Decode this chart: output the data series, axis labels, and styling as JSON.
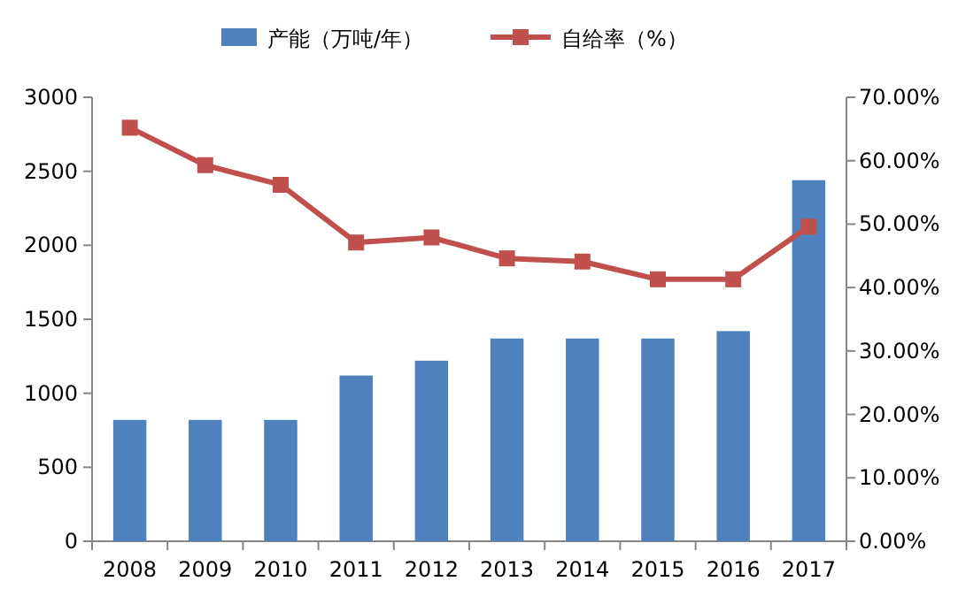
{
  "chart_data": {
    "type": "bar",
    "categories": [
      "2008",
      "2009",
      "2010",
      "2011",
      "2012",
      "2013",
      "2014",
      "2015",
      "2016",
      "2017"
    ],
    "series": [
      {
        "name": "产能（万吨/年）",
        "color": "#4f81bd",
        "values": [
          820,
          820,
          820,
          1120,
          1220,
          1370,
          1370,
          1370,
          1420,
          2440
        ]
      },
      {
        "name": "自给率（%）",
        "type": "line",
        "axis": "y2",
        "color": "#c0504d",
        "marker": "square",
        "values": [
          65.2,
          59.3,
          56.2,
          47.1,
          47.9,
          44.6,
          44.1,
          41.3,
          41.3,
          49.6
        ]
      }
    ],
    "ylim": [
      0,
      3000
    ],
    "yticks": [
      0,
      500,
      1000,
      1500,
      2000,
      2500,
      3000
    ],
    "y2lim": [
      0,
      70
    ],
    "y2ticks": [
      {
        "value": 0,
        "label": "0.00%"
      },
      {
        "value": 10,
        "label": "10.00%"
      },
      {
        "value": 20,
        "label": "20.00%"
      },
      {
        "value": 30,
        "label": "30.00%"
      },
      {
        "value": 40,
        "label": "40.00%"
      },
      {
        "value": 50,
        "label": "50.00%"
      },
      {
        "value": 60,
        "label": "60.00%"
      },
      {
        "value": 70,
        "label": "70.00%"
      }
    ],
    "legend": "top"
  }
}
